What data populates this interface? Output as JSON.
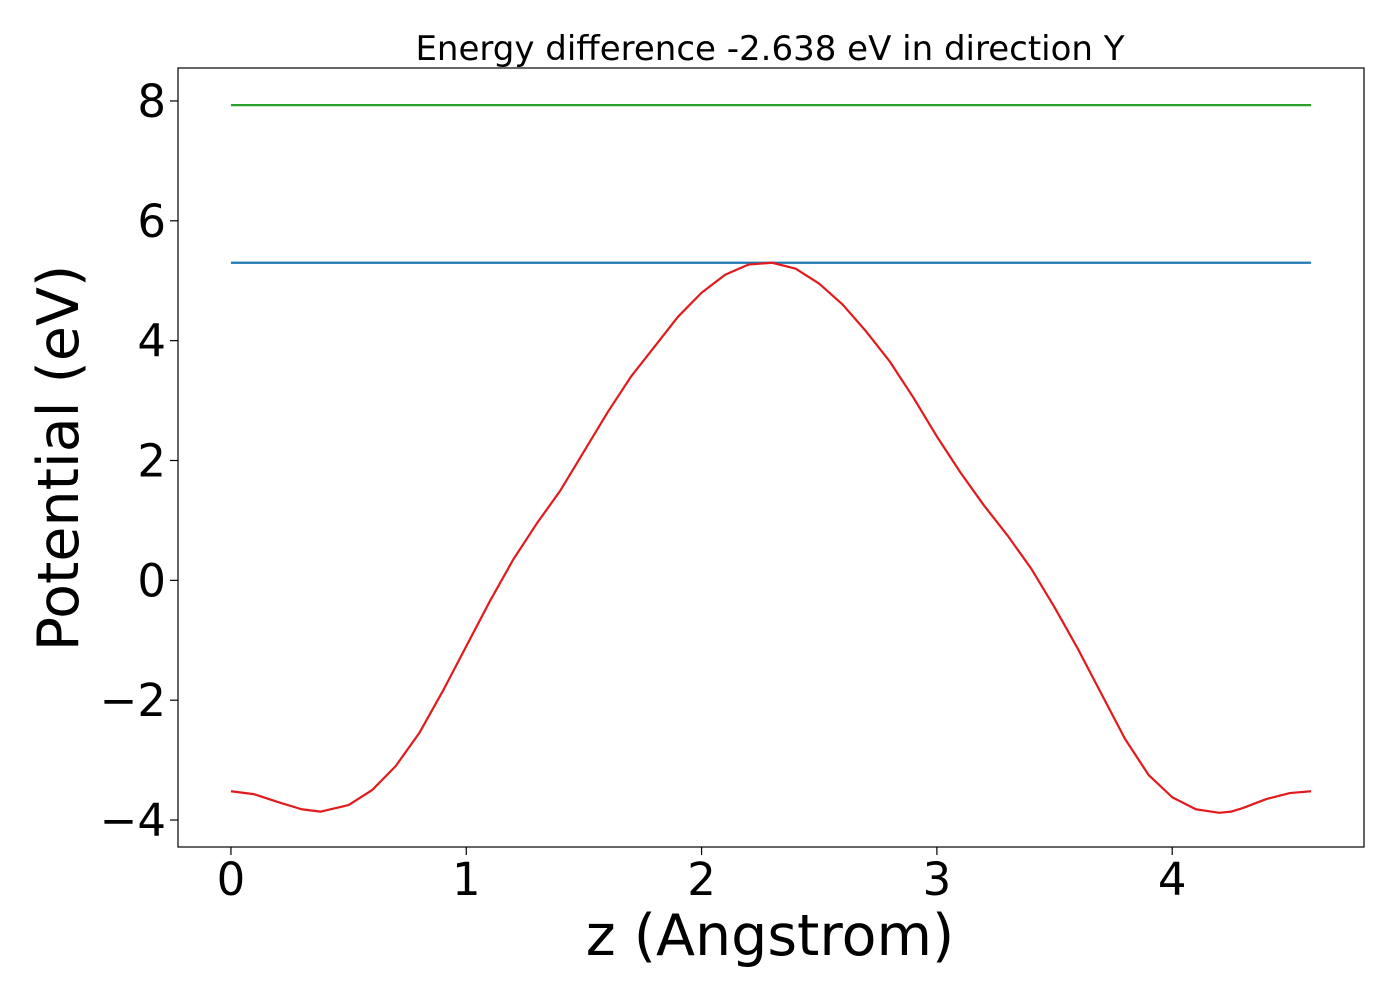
{
  "chart_data": {
    "type": "line",
    "title": "Energy difference -2.638 eV in direction Y",
    "xlabel": "z (Angstrom)",
    "ylabel": "Potential (eV)",
    "xlim": [
      -0.225,
      4.815
    ],
    "ylim": [
      -4.45,
      8.55
    ],
    "xticks": [
      0,
      1,
      2,
      3,
      4
    ],
    "yticks": [
      -4,
      -2,
      0,
      2,
      4,
      6,
      8
    ],
    "ytick_labels": [
      "−4",
      "−2",
      "0",
      "2",
      "4",
      "6",
      "8"
    ],
    "grid": false,
    "legend": "none",
    "series": [
      {
        "color": "#1f77b4",
        "x": [
          0,
          4.59
        ],
        "y": [
          5.3,
          5.3
        ]
      },
      {
        "color": "#2ca02c",
        "x": [
          0,
          4.59
        ],
        "y": [
          7.93,
          7.93
        ]
      },
      {
        "color": "#e31a1c",
        "x": [
          0,
          0.1,
          0.2,
          0.3,
          0.38,
          0.5,
          0.6,
          0.7,
          0.8,
          0.9,
          1.0,
          1.1,
          1.2,
          1.3,
          1.4,
          1.5,
          1.6,
          1.7,
          1.8,
          1.9,
          2.0,
          2.1,
          2.2,
          2.3,
          2.4,
          2.5,
          2.6,
          2.7,
          2.8,
          2.9,
          3.0,
          3.1,
          3.2,
          3.3,
          3.4,
          3.5,
          3.6,
          3.7,
          3.8,
          3.9,
          4.0,
          4.1,
          4.2,
          4.25,
          4.3,
          4.4,
          4.5,
          4.59
        ],
        "y": [
          -3.52,
          -3.57,
          -3.7,
          -3.82,
          -3.86,
          -3.75,
          -3.5,
          -3.1,
          -2.55,
          -1.85,
          -1.1,
          -0.35,
          0.35,
          0.95,
          1.5,
          2.15,
          2.8,
          3.4,
          3.9,
          4.4,
          4.8,
          5.1,
          5.27,
          5.3,
          5.2,
          4.95,
          4.6,
          4.15,
          3.65,
          3.05,
          2.4,
          1.8,
          1.25,
          0.75,
          0.2,
          -0.45,
          -1.15,
          -1.9,
          -2.65,
          -3.25,
          -3.62,
          -3.82,
          -3.88,
          -3.86,
          -3.8,
          -3.65,
          -3.55,
          -3.52
        ]
      }
    ]
  }
}
